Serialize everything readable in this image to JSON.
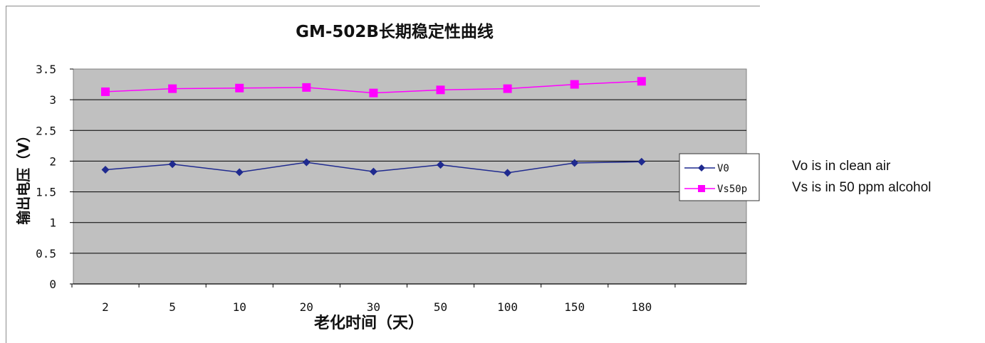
{
  "chart_data": {
    "type": "line",
    "title": "GM-502B长期稳定性曲线",
    "xlabel": "老化时间（天）",
    "ylabel": "输出电压（V）",
    "categories": [
      "2",
      "5",
      "10",
      "20",
      "30",
      "50",
      "100",
      "150",
      "180"
    ],
    "y_ticks": [
      "0",
      "0.5",
      "1",
      "1.5",
      "2",
      "2.5",
      "3",
      "3.5"
    ],
    "ylim": [
      0,
      3.5
    ],
    "grid": true,
    "plot_background": "#c0c0c0",
    "legend_position": "right",
    "series": [
      {
        "name": "V0",
        "values": [
          1.86,
          1.95,
          1.82,
          1.98,
          1.83,
          1.94,
          1.81,
          1.97,
          1.99
        ],
        "color": "#1f2a8f",
        "marker": "diamond"
      },
      {
        "name": "Vs50p",
        "values": [
          3.13,
          3.18,
          3.19,
          3.2,
          3.11,
          3.16,
          3.18,
          3.25,
          3.3
        ],
        "color": "#ff00ff",
        "marker": "square"
      }
    ]
  },
  "notes": {
    "line1": "Vo is in clean air",
    "line2": "Vs is in 50 ppm alcohol"
  }
}
